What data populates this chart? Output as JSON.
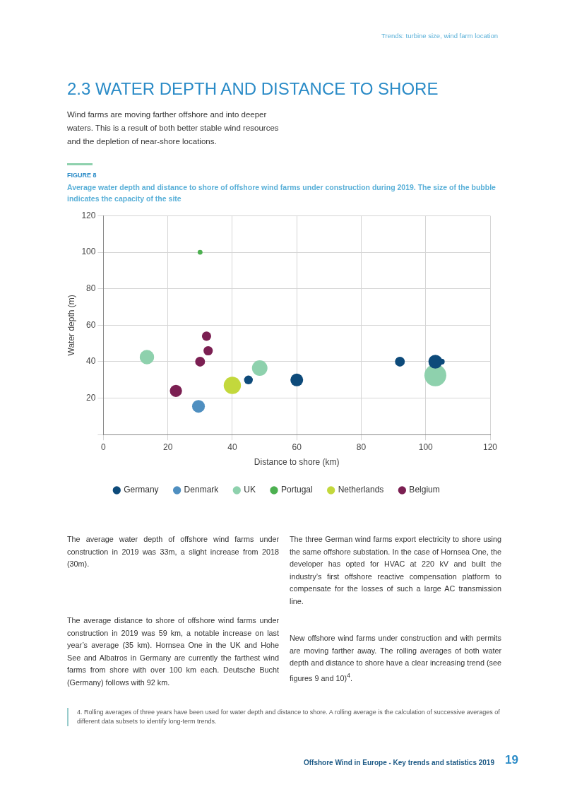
{
  "chart_data": {
    "type": "bubble",
    "title": "2.3 WATER DEPTH AND DISTANCE TO SHORE",
    "subtitle": "Wind farms are moving farther offshore and into deeper waters. This is a result of both better stable wind resources and the depletion of near-shore locations.",
    "xlabel": "Distance to shore (km)",
    "ylabel": "Water depth (m)",
    "xlim": [
      0,
      120
    ],
    "xticks": [
      0,
      20,
      40,
      60,
      80,
      100,
      120
    ],
    "ylim": [
      0,
      120
    ],
    "yticks": [
      {
        "value": 0,
        "label": null
      },
      20,
      40,
      60,
      80,
      100,
      120
    ],
    "grid": true,
    "legend": "bottom",
    "series": [
      {
        "name": "Germany",
        "color": "#0d4a7a",
        "x": [
          45,
          60,
          92,
          103,
          105
        ],
        "values": [
          30,
          30,
          40,
          40,
          40
        ],
        "sizes": [
          0.16,
          0.34,
          0.2,
          0.4,
          0.07
        ]
      },
      {
        "name": "Denmark",
        "color": "#4f8fc0",
        "x": [
          29.5
        ],
        "values": [
          15.5
        ],
        "sizes": [
          0.34
        ]
      },
      {
        "name": "UK",
        "color": "#8ed1ad",
        "x": [
          13.5,
          48.5,
          103
        ],
        "values": [
          42.5,
          36.5,
          32.5
        ],
        "sizes": [
          0.43,
          0.5,
          1
        ]
      },
      {
        "name": "Portugal",
        "color": "#4cb050",
        "x": [
          30
        ],
        "values": [
          100
        ],
        "sizes": [
          0.05
        ]
      },
      {
        "name": "Netherlands",
        "color": "#c3d83c",
        "x": [
          40
        ],
        "values": [
          27
        ],
        "sizes": [
          0.62
        ]
      },
      {
        "name": "Belgium",
        "color": "#7b1f52",
        "x": [
          32,
          32.5,
          30,
          22.5
        ],
        "values": [
          54,
          46,
          40,
          24
        ],
        "sizes": [
          0.18,
          0.18,
          0.2,
          0.31
        ]
      }
    ],
    "annotations": [
      "Trends: turbine size, wind farm location",
      "FIGURE 8",
      "Average water depth and distance to shore of offshore wind farms under construction during 2019. The size of the bubble indicates the capacity of the site",
      "The average water depth of offshore wind farms under construction in 2019 was 33m, a slight increase from 2018 (30m).",
      "The average distance to shore of offshore wind farms under construction in 2019 was 59 km, a notable increase on last year’s average (35 km). Hornsea One in the UK and Hohe See and Albatros in Germany are currently the farthest wind farms from shore with over 100 km each. Deutsche Bucht (Germany) follows with 92 km.",
      "The three German wind farms export electricity to shore using the same offshore substation. In the case of Hornsea One, the developer has opted for HVAC at 220 kV and built the industry’s first offshore reactive compensation platform to compensate for the losses of such a large AC transmission line.",
      "New offshore wind farms under construction and with permits are moving farther away. The rolling averages of both water depth and distance to shore have a clear increasing trend (see figures 9 and 10)$^{4}$.",
      "4. Rolling averages of three years have been used for water depth and distance to shore. A rolling average is the calculation of successive averages of different data subsets to identify long-term trends.",
      "Offshore Wind in Europe - Key trends and statistics 2019",
      "19"
    ]
  }
}
